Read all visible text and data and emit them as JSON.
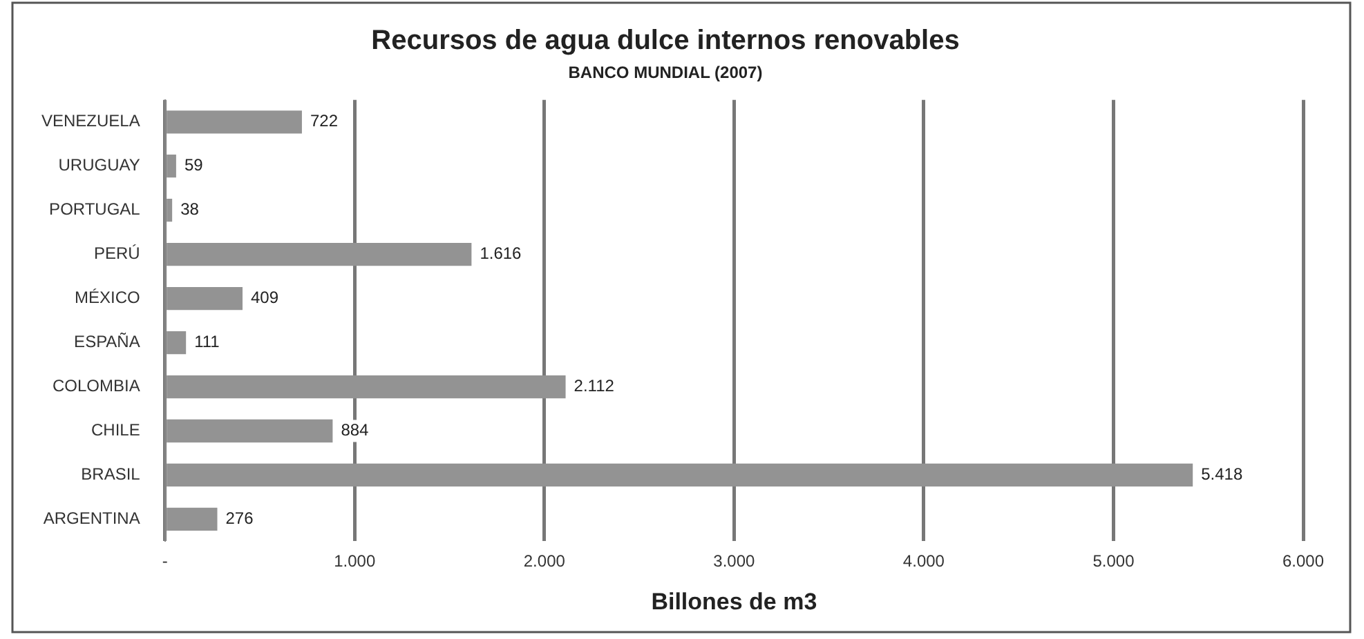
{
  "chart_data": {
    "type": "bar",
    "orientation": "horizontal",
    "title": "Recursos de agua dulce internos renovables",
    "subtitle": "BANCO MUNDIAL (2007)",
    "xlabel": "Billones de m3",
    "categories": [
      "VENEZUELA",
      "URUGUAY",
      "PORTUGAL",
      "PERÚ",
      "MÉXICO",
      "ESPAÑA",
      "COLOMBIA",
      "CHILE",
      "BRASIL",
      "ARGENTINA"
    ],
    "values": [
      722,
      59,
      38,
      1616,
      409,
      111,
      2112,
      884,
      5418,
      276
    ],
    "value_labels": [
      "722",
      "59",
      "38",
      "1.616",
      "409",
      "111",
      "2.112",
      "884",
      "5.418",
      "276"
    ],
    "color": "#939393",
    "xlim": [
      0,
      6000
    ],
    "xticks": [
      {
        "value": 0,
        "label": "-"
      },
      {
        "value": 1000,
        "label": "1.000"
      },
      {
        "value": 2000,
        "label": "2.000"
      },
      {
        "value": 3000,
        "label": "3.000"
      },
      {
        "value": 4000,
        "label": "4.000"
      },
      {
        "value": 5000,
        "label": "5.000"
      },
      {
        "value": 6000,
        "label": "6.000"
      }
    ],
    "grid": "x",
    "legend": false
  }
}
